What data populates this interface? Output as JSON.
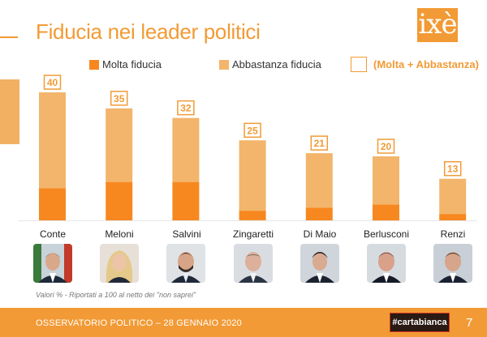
{
  "header": {
    "title": "Fiducia nei leader politici",
    "logo": "ixè"
  },
  "legend": {
    "molta": "Molta fiducia",
    "abbastanza": "Abbastanza fiducia",
    "totale": "(Molta + Abbastanza)"
  },
  "colors": {
    "accent": "#f29a35",
    "molta": "#f7881f",
    "abbastanza": "#f2b56b",
    "footer": "#f29a35"
  },
  "chart_data": {
    "type": "bar",
    "stacked": true,
    "title": "Fiducia nei leader politici",
    "xlabel": "",
    "ylabel": "",
    "ylim": [
      0,
      40
    ],
    "categories": [
      "Conte",
      "Meloni",
      "Salvini",
      "Zingaretti",
      "Di Maio",
      "Berlusconi",
      "Renzi"
    ],
    "series": [
      {
        "name": "Molta fiducia",
        "values": [
          10,
          12,
          12,
          3,
          4,
          5,
          2
        ]
      },
      {
        "name": "Abbastanza fiducia",
        "values": [
          30,
          23,
          20,
          22,
          17,
          15,
          11
        ]
      }
    ],
    "totals_label": "(Molta + Abbastanza)",
    "totals": [
      40,
      35,
      32,
      25,
      21,
      20,
      13
    ],
    "legend_position": "top"
  },
  "leaders": [
    {
      "name": "Conte",
      "photo_icon": "conte-portrait-icon"
    },
    {
      "name": "Meloni",
      "photo_icon": "meloni-portrait-icon"
    },
    {
      "name": "Salvini",
      "photo_icon": "salvini-portrait-icon"
    },
    {
      "name": "Zingaretti",
      "photo_icon": "zingaretti-portrait-icon"
    },
    {
      "name": "Di Maio",
      "photo_icon": "di-maio-portrait-icon"
    },
    {
      "name": "Berlusconi",
      "photo_icon": "berlusconi-portrait-icon"
    },
    {
      "name": "Renzi",
      "photo_icon": "renzi-portrait-icon"
    }
  ],
  "note": "Valori % - Riportati a 100 al netto dei \"non saprei\"",
  "footer": {
    "text": "OSSERVATORIO POLITICO – 28 GENNAIO 2020",
    "brand": "#cartabianca",
    "page": "7"
  }
}
